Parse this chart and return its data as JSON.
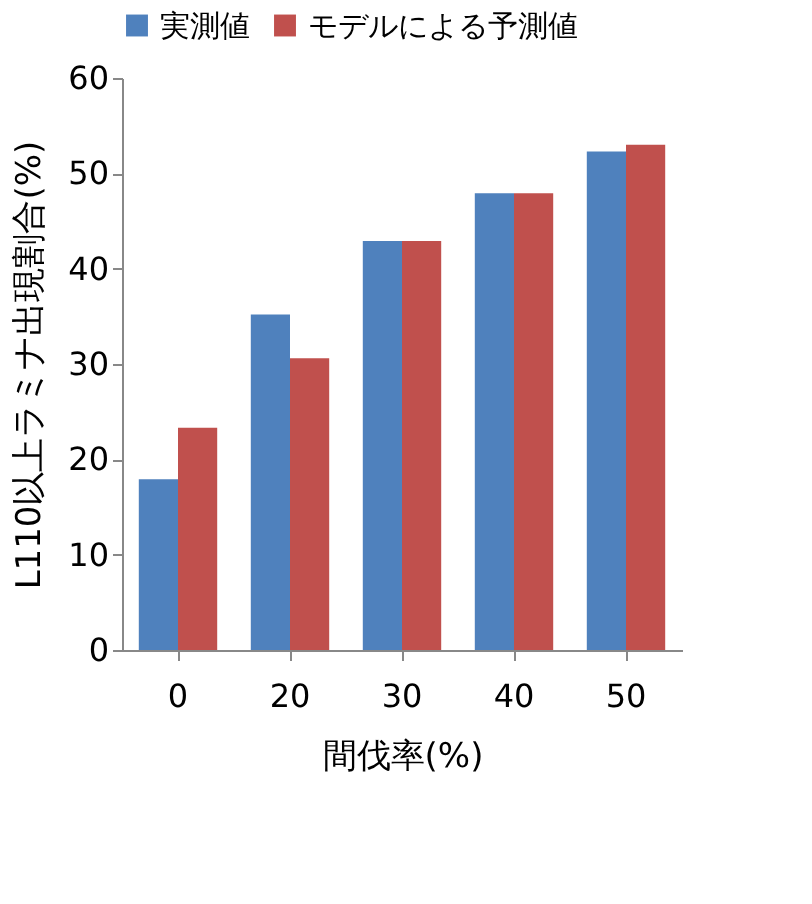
{
  "chart_data": {
    "type": "bar",
    "xlabel": "間伐率(%)",
    "ylabel": "L110以上ラミナ出現割合(%)",
    "categories": [
      "0",
      "20",
      "30",
      "40",
      "50"
    ],
    "series": [
      {
        "name": "実測値",
        "color": "#4f81bd",
        "values": [
          17.9,
          35.2,
          42.9,
          47.9,
          52.3
        ]
      },
      {
        "name": "モデルによる予測値",
        "color": "#c0504d",
        "values": [
          23.3,
          30.6,
          42.9,
          47.9,
          53.0
        ]
      }
    ],
    "ylim": [
      0,
      60
    ],
    "yticks": [
      0,
      10,
      20,
      30,
      40,
      50,
      60
    ],
    "grid": false,
    "legend": "top"
  }
}
